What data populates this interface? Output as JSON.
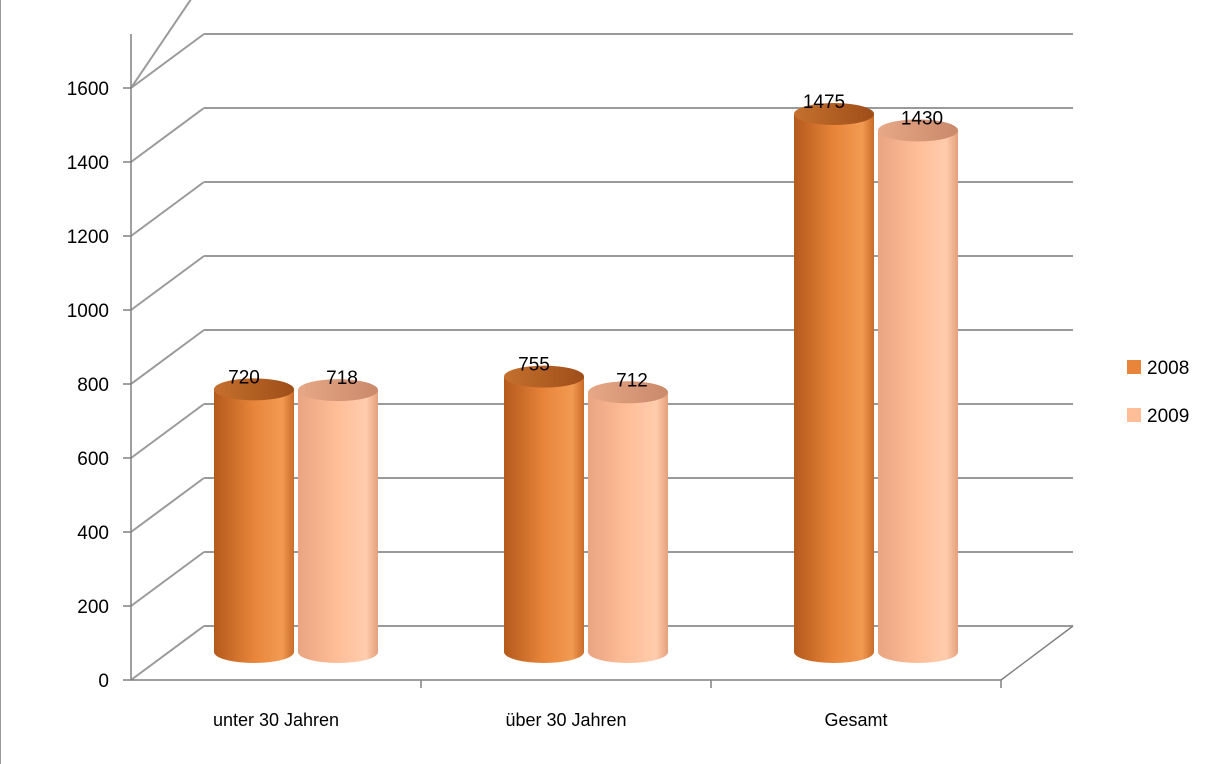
{
  "chart_data": {
    "type": "bar",
    "categories": [
      "unter 30 Jahren",
      "über 30 Jahren",
      "Gesamt"
    ],
    "series": [
      {
        "name": "2008",
        "values": [
          720,
          755,
          1475
        ],
        "color": "#E8853A"
      },
      {
        "name": "2009",
        "values": [
          718,
          712,
          1430
        ],
        "color": "#FFBE98"
      }
    ],
    "y_ticks": [
      "0",
      "200",
      "400",
      "600",
      "800",
      "1000",
      "1200",
      "1400",
      "1600"
    ],
    "ylim": [
      0,
      1600
    ],
    "grid": true,
    "legend": "right",
    "style": "3d-cylinder",
    "title": "",
    "xlabel": "",
    "ylabel": ""
  }
}
